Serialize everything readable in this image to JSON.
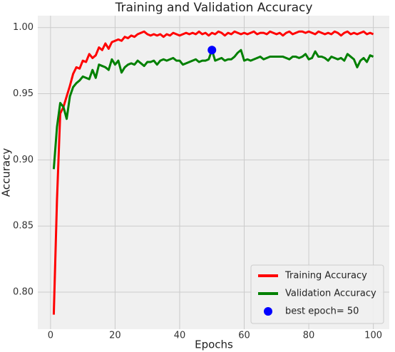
{
  "chart_data": {
    "type": "line",
    "title": "Training and Validation Accuracy",
    "x_label": "Epochs",
    "y_label": "Accuracy",
    "x": [
      1,
      2,
      3,
      4,
      5,
      6,
      7,
      8,
      9,
      10,
      11,
      12,
      13,
      14,
      15,
      16,
      17,
      18,
      19,
      20,
      21,
      22,
      23,
      24,
      25,
      26,
      27,
      28,
      29,
      30,
      31,
      32,
      33,
      34,
      35,
      36,
      37,
      38,
      39,
      40,
      41,
      42,
      43,
      44,
      45,
      46,
      47,
      48,
      49,
      50,
      51,
      52,
      53,
      54,
      55,
      56,
      57,
      58,
      59,
      60,
      61,
      62,
      63,
      64,
      65,
      66,
      67,
      68,
      69,
      70,
      71,
      72,
      73,
      74,
      75,
      76,
      77,
      78,
      79,
      80,
      81,
      82,
      83,
      84,
      85,
      86,
      87,
      88,
      89,
      90,
      91,
      92,
      93,
      94,
      95,
      96,
      97,
      98,
      99,
      100
    ],
    "series": [
      {
        "name": "Training Accuracy",
        "color": "#ff0000",
        "values": [
          0.783,
          0.87,
          0.935,
          0.94,
          0.948,
          0.956,
          0.965,
          0.97,
          0.969,
          0.975,
          0.974,
          0.98,
          0.977,
          0.979,
          0.985,
          0.983,
          0.988,
          0.984,
          0.989,
          0.99,
          0.991,
          0.99,
          0.993,
          0.992,
          0.994,
          0.993,
          0.995,
          0.996,
          0.997,
          0.995,
          0.994,
          0.995,
          0.994,
          0.995,
          0.993,
          0.995,
          0.994,
          0.996,
          0.995,
          0.994,
          0.995,
          0.996,
          0.995,
          0.996,
          0.995,
          0.997,
          0.995,
          0.996,
          0.994,
          0.996,
          0.995,
          0.997,
          0.996,
          0.994,
          0.996,
          0.995,
          0.997,
          0.996,
          0.995,
          0.996,
          0.995,
          0.996,
          0.997,
          0.995,
          0.996,
          0.996,
          0.995,
          0.997,
          0.996,
          0.995,
          0.996,
          0.994,
          0.996,
          0.997,
          0.995,
          0.996,
          0.997,
          0.997,
          0.996,
          0.997,
          0.996,
          0.995,
          0.997,
          0.996,
          0.995,
          0.996,
          0.995,
          0.997,
          0.996,
          0.994,
          0.996,
          0.997,
          0.995,
          0.996,
          0.995,
          0.996,
          0.997,
          0.995,
          0.996,
          0.995
        ]
      },
      {
        "name": "Validation Accuracy",
        "color": "#008000",
        "values": [
          0.893,
          0.925,
          0.943,
          0.94,
          0.931,
          0.948,
          0.955,
          0.958,
          0.96,
          0.963,
          0.962,
          0.961,
          0.968,
          0.962,
          0.972,
          0.971,
          0.97,
          0.968,
          0.976,
          0.972,
          0.975,
          0.966,
          0.97,
          0.972,
          0.973,
          0.972,
          0.975,
          0.973,
          0.971,
          0.974,
          0.974,
          0.975,
          0.972,
          0.975,
          0.976,
          0.975,
          0.976,
          0.977,
          0.975,
          0.975,
          0.972,
          0.973,
          0.974,
          0.975,
          0.976,
          0.974,
          0.975,
          0.975,
          0.976,
          0.983,
          0.975,
          0.976,
          0.977,
          0.975,
          0.976,
          0.976,
          0.978,
          0.981,
          0.983,
          0.975,
          0.976,
          0.975,
          0.976,
          0.977,
          0.978,
          0.976,
          0.977,
          0.978,
          0.978,
          0.978,
          0.978,
          0.978,
          0.977,
          0.976,
          0.978,
          0.978,
          0.977,
          0.978,
          0.98,
          0.976,
          0.977,
          0.982,
          0.978,
          0.978,
          0.977,
          0.975,
          0.978,
          0.977,
          0.976,
          0.977,
          0.975,
          0.98,
          0.978,
          0.976,
          0.97,
          0.975,
          0.977,
          0.974,
          0.979,
          0.978
        ]
      }
    ],
    "best": {
      "name": "best epoch= 50",
      "color": "#0000ff",
      "x": 50,
      "y": 0.983
    },
    "xlim": [
      -3.95,
      104.95
    ],
    "ylim": [
      0.772,
      1.009
    ],
    "xticks": [
      0,
      20,
      40,
      60,
      80,
      100
    ],
    "yticks": [
      {
        "value": 0.8,
        "label": "0.80"
      },
      0.85,
      {
        "value": 0.9,
        "label": "0.90"
      },
      0.95,
      {
        "value": 1.0,
        "label": "1.00"
      }
    ],
    "grid": true,
    "legend": "lower right"
  }
}
